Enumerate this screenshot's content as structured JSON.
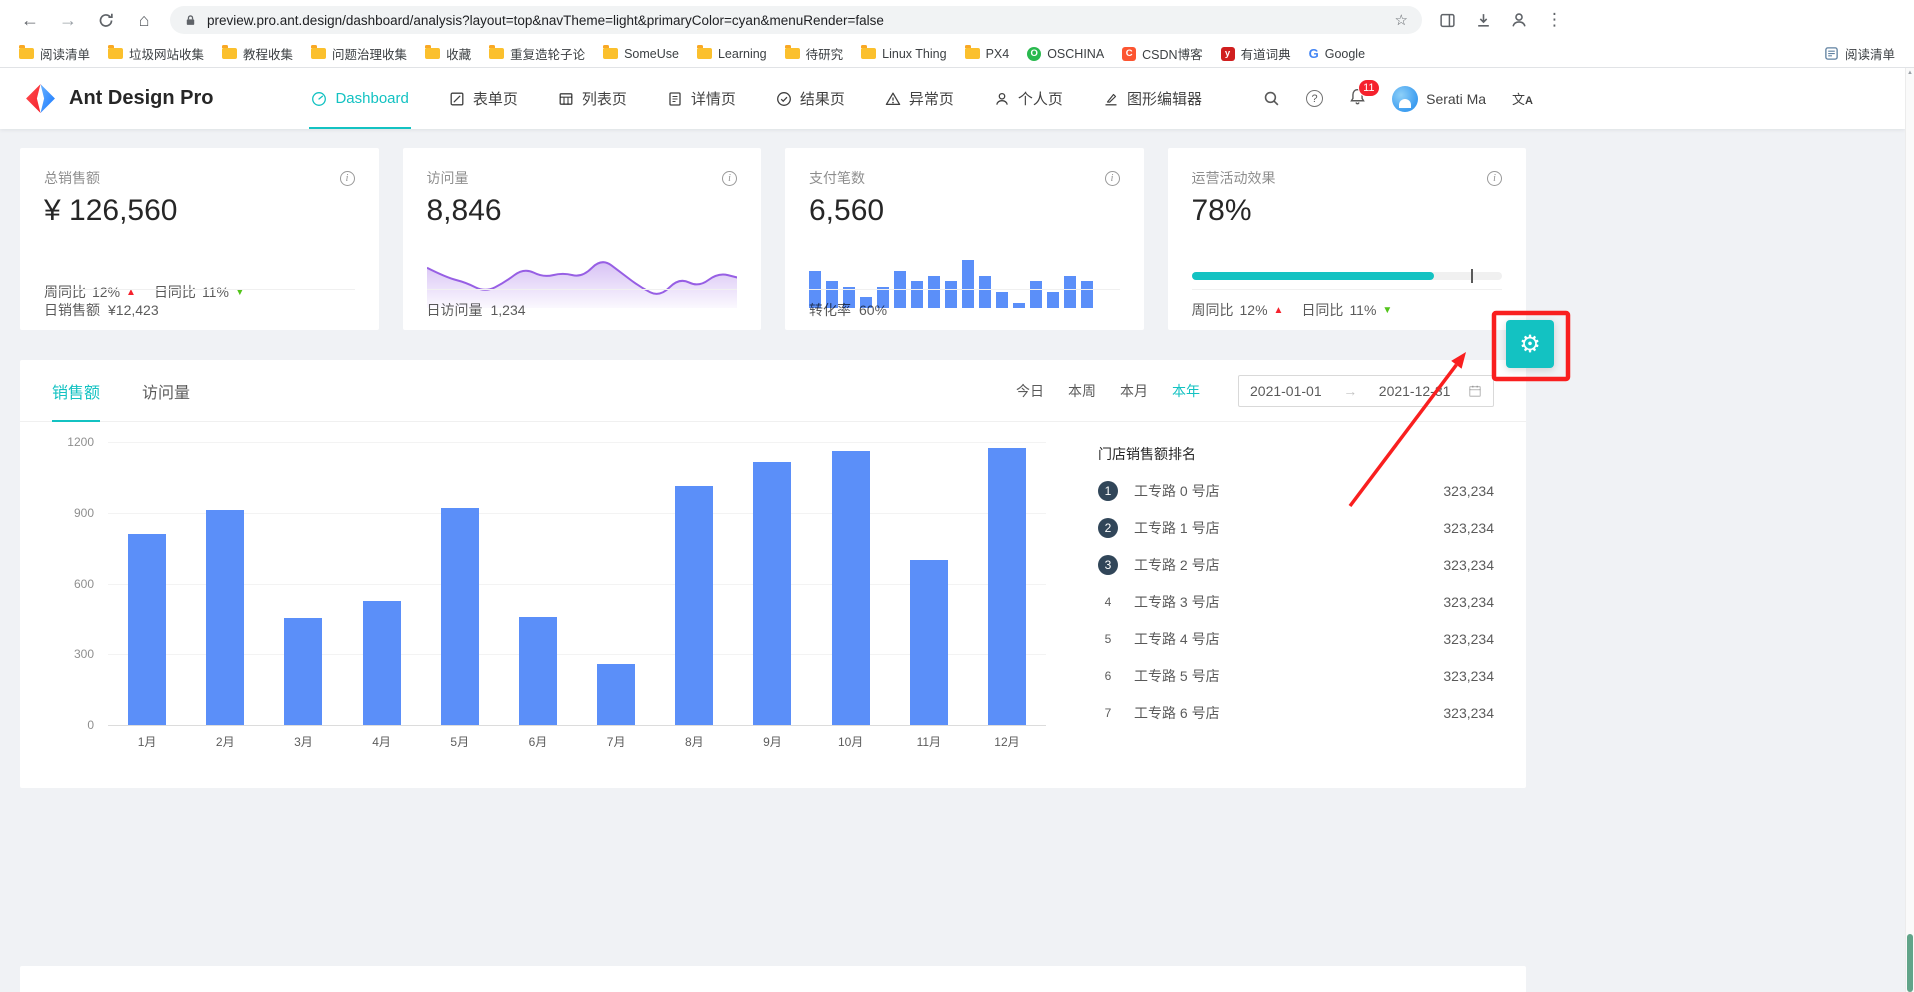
{
  "colors": {
    "primary": "#13c2c2",
    "up_red": "#f5222d",
    "down_green": "#52c41a",
    "bar_blue": "#5B8FF9",
    "area_purple": "#975FE4",
    "annotation_red": "#f91f1f"
  },
  "browser": {
    "url": "preview.pro.ant.design/dashboard/analysis?layout=top&navTheme=light&primaryColor=cyan&menuRender=false",
    "bookmarks": [
      {
        "label": "阅读清单",
        "icon": "folder"
      },
      {
        "label": "垃圾网站收集",
        "icon": "folder"
      },
      {
        "label": "教程收集",
        "icon": "folder"
      },
      {
        "label": "问题治理收集",
        "icon": "folder"
      },
      {
        "label": "收藏",
        "icon": "folder"
      },
      {
        "label": "重复造轮子论",
        "icon": "folder"
      },
      {
        "label": "SomeUse",
        "icon": "folder"
      },
      {
        "label": "Learning",
        "icon": "folder"
      },
      {
        "label": "待研究",
        "icon": "folder"
      },
      {
        "label": "Linux Thing",
        "icon": "folder"
      },
      {
        "label": "PX4",
        "icon": "folder"
      },
      {
        "label": "OSCHINA",
        "icon": "oschina"
      },
      {
        "label": "CSDN博客",
        "icon": "csdn"
      },
      {
        "label": "有道词典",
        "icon": "youdao"
      },
      {
        "label": "Google",
        "icon": "google"
      }
    ],
    "bookmarks_right": "阅读清单"
  },
  "header": {
    "app_title": "Ant Design Pro",
    "nav": [
      {
        "label": "Dashboard",
        "icon": "dashboard",
        "active": true
      },
      {
        "label": "表单页",
        "icon": "form"
      },
      {
        "label": "列表页",
        "icon": "table"
      },
      {
        "label": "详情页",
        "icon": "profile"
      },
      {
        "label": "结果页",
        "icon": "check"
      },
      {
        "label": "异常页",
        "icon": "warning"
      },
      {
        "label": "个人页",
        "icon": "user"
      },
      {
        "label": "图形编辑器",
        "icon": "highlight"
      }
    ],
    "notification_count": "11",
    "user_name": "Serati Ma"
  },
  "stats": {
    "card1": {
      "title": "总销售额",
      "value": "¥ 126,560",
      "wow_label": "周同比",
      "wow": "12%",
      "dod_label": "日同比",
      "dod": "11%",
      "footer_label": "日销售额",
      "footer_value": "¥12,423"
    },
    "card2": {
      "title": "访问量",
      "value": "8,846",
      "footer_label": "日访问量",
      "footer_value": "1,234"
    },
    "card3": {
      "title": "支付笔数",
      "value": "6,560",
      "footer_label": "转化率",
      "footer_value": "60%"
    },
    "card4": {
      "title": "运营活动效果",
      "value": "78%",
      "progress": 78,
      "target": 90,
      "wow_label": "周同比",
      "wow": "12%",
      "dod_label": "日同比",
      "dod": "11%"
    }
  },
  "sales": {
    "tabs": [
      "销售额",
      "访问量"
    ],
    "ranges": [
      "今日",
      "本周",
      "本月",
      "本年"
    ],
    "active_range": "本年",
    "date_start": "2021-01-01",
    "date_end": "2021-12-31",
    "ranking_title": "门店销售额排名",
    "ranking": [
      {
        "rank": 1,
        "name": "工专路 0 号店",
        "value": "323,234"
      },
      {
        "rank": 2,
        "name": "工专路 1 号店",
        "value": "323,234"
      },
      {
        "rank": 3,
        "name": "工专路 2 号店",
        "value": "323,234"
      },
      {
        "rank": 4,
        "name": "工专路 3 号店",
        "value": "323,234"
      },
      {
        "rank": 5,
        "name": "工专路 4 号店",
        "value": "323,234"
      },
      {
        "rank": 6,
        "name": "工专路 5 号店",
        "value": "323,234"
      },
      {
        "rank": 7,
        "name": "工专路 6 号店",
        "value": "323,234"
      }
    ]
  },
  "chart_data": [
    {
      "type": "bar",
      "title": "销售额",
      "categories": [
        "1月",
        "2月",
        "3月",
        "4月",
        "5月",
        "6月",
        "7月",
        "8月",
        "9月",
        "10月",
        "11月",
        "12月"
      ],
      "values": [
        810,
        910,
        455,
        525,
        920,
        458,
        258,
        1015,
        1115,
        1160,
        700,
        1175
      ],
      "xlabel": "",
      "ylabel": "",
      "ylim": [
        0,
        1200
      ],
      "yticks": [
        0,
        300,
        600,
        900,
        1200
      ],
      "bar_color": "#5B8FF9",
      "grid": true,
      "legend": "none"
    },
    {
      "type": "area",
      "title": "访问量",
      "values": [
        7,
        5,
        4,
        2,
        4,
        7,
        5,
        6,
        5,
        9,
        6,
        3,
        1,
        5,
        3,
        6,
        5
      ],
      "color": "#975FE4"
    },
    {
      "type": "bar",
      "title": "支付笔数",
      "values": [
        7,
        5,
        4,
        2,
        4,
        7,
        5,
        6,
        5,
        9,
        6,
        3,
        1,
        5,
        3,
        6,
        5
      ],
      "color": "#5B8FF9"
    }
  ]
}
